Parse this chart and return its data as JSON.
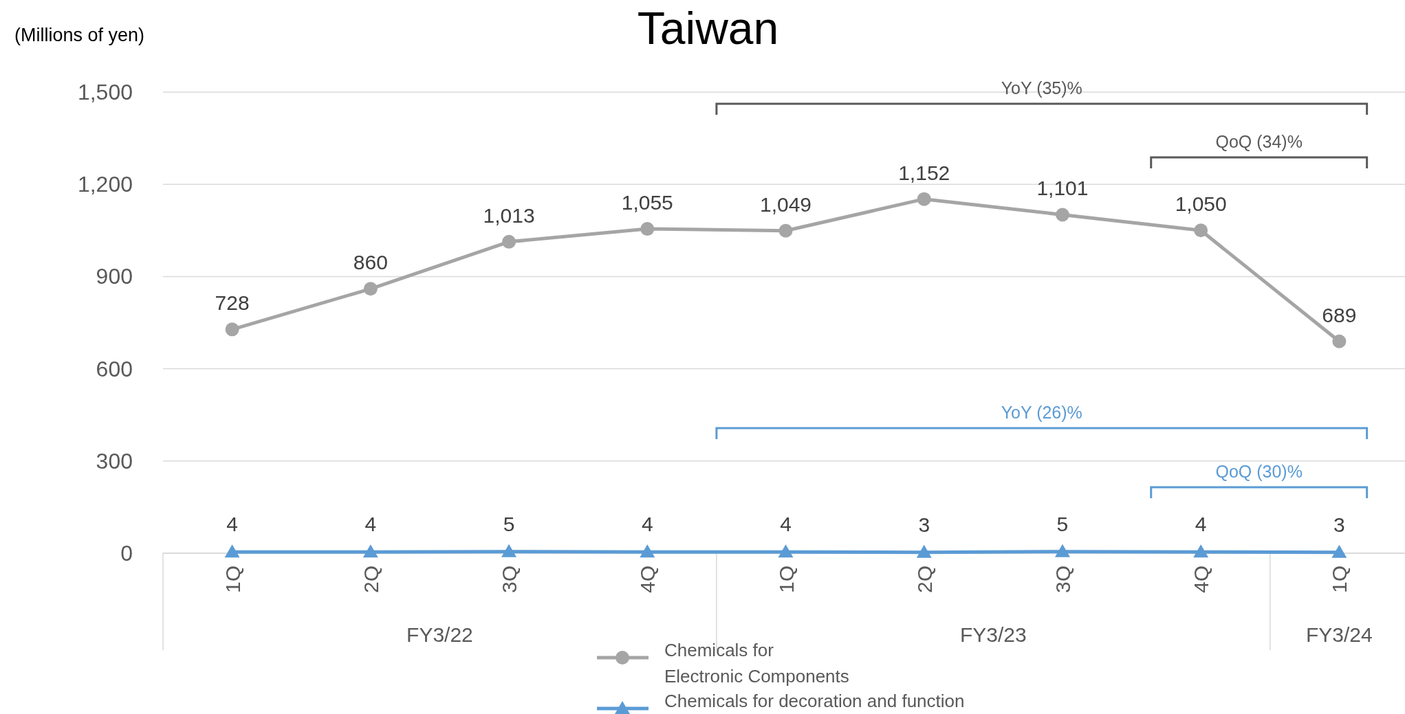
{
  "chart_data": {
    "type": "line",
    "title": "Taiwan",
    "ylabel": "(Millions of yen)",
    "categories": [
      "1Q",
      "2Q",
      "3Q",
      "4Q",
      "1Q",
      "2Q",
      "3Q",
      "4Q",
      "1Q"
    ],
    "series": [
      {
        "name": "Chemicals for\nElectronic Components",
        "color": "#a5a5a5",
        "marker": "circle",
        "values": [
          728,
          860,
          1013,
          1055,
          1049,
          1152,
          1101,
          1050,
          689
        ],
        "value_labels": [
          "728",
          "860",
          "1,013",
          "1,055",
          "1,049",
          "1,152",
          "1,101",
          "1,050",
          "689"
        ]
      },
      {
        "name": "Chemicals for decoration and function",
        "color": "#5b9bd5",
        "marker": "triangle",
        "values": [
          4,
          4,
          5,
          4,
          4,
          3,
          5,
          4,
          3
        ]
      }
    ],
    "ylim": [
      0,
      1500
    ],
    "yticks": [
      0,
      300,
      600,
      900,
      {
        "value": 1200,
        "label": "1,200"
      },
      {
        "value": 1500,
        "label": "1,500"
      }
    ],
    "grid": "y",
    "data_labels": true,
    "legend": "bottom",
    "annotations": [
      "FY3/22",
      "FY3/23",
      "FY3/24",
      "YoY (35)%",
      "QoQ (34)%",
      "YoY (26)%",
      "QoQ (30)%"
    ]
  }
}
